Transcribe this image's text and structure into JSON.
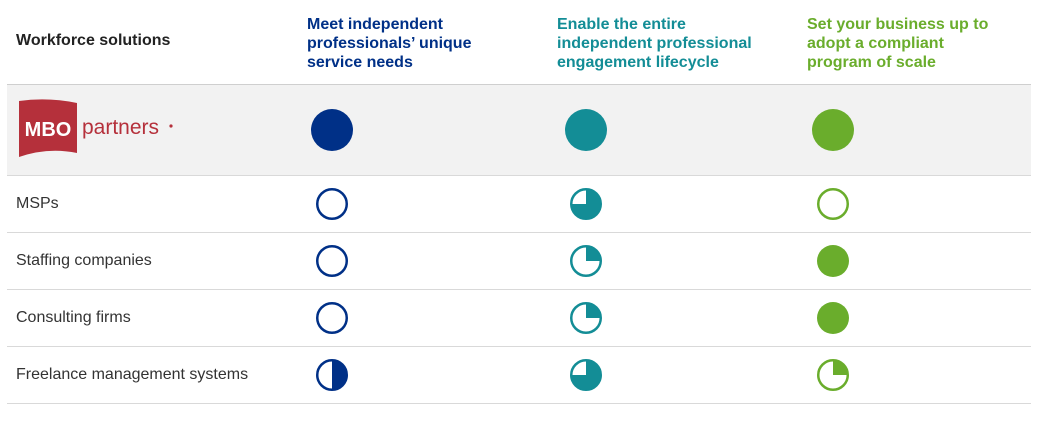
{
  "header": {
    "first_column": "Workforce solutions",
    "columns": [
      {
        "label": "Meet independent professionals’ unique service needs",
        "color": "#003087"
      },
      {
        "label": "Enable the entire independent professional engagement lifecycle",
        "color": "#138d96"
      },
      {
        "label": "Set your business up to adopt a compliant program of scale",
        "color": "#6aad2c"
      }
    ]
  },
  "rows": [
    {
      "label": "MBO partners",
      "is_logo": true,
      "levels": [
        1,
        1,
        1
      ]
    },
    {
      "label": "MSPs",
      "levels": [
        0,
        0.75,
        0
      ]
    },
    {
      "label": "Staffing companies",
      "levels": [
        0,
        0.25,
        1
      ]
    },
    {
      "label": "Consulting firms",
      "levels": [
        0,
        0.25,
        1
      ]
    },
    {
      "label": "Freelance management systems",
      "levels": [
        0.5,
        0.75,
        0.25
      ]
    }
  ],
  "logo": {
    "mark_text": "MBO",
    "word_text": "partners",
    "mark_color": "#b5303b",
    "word_color": "#b5303b"
  }
}
